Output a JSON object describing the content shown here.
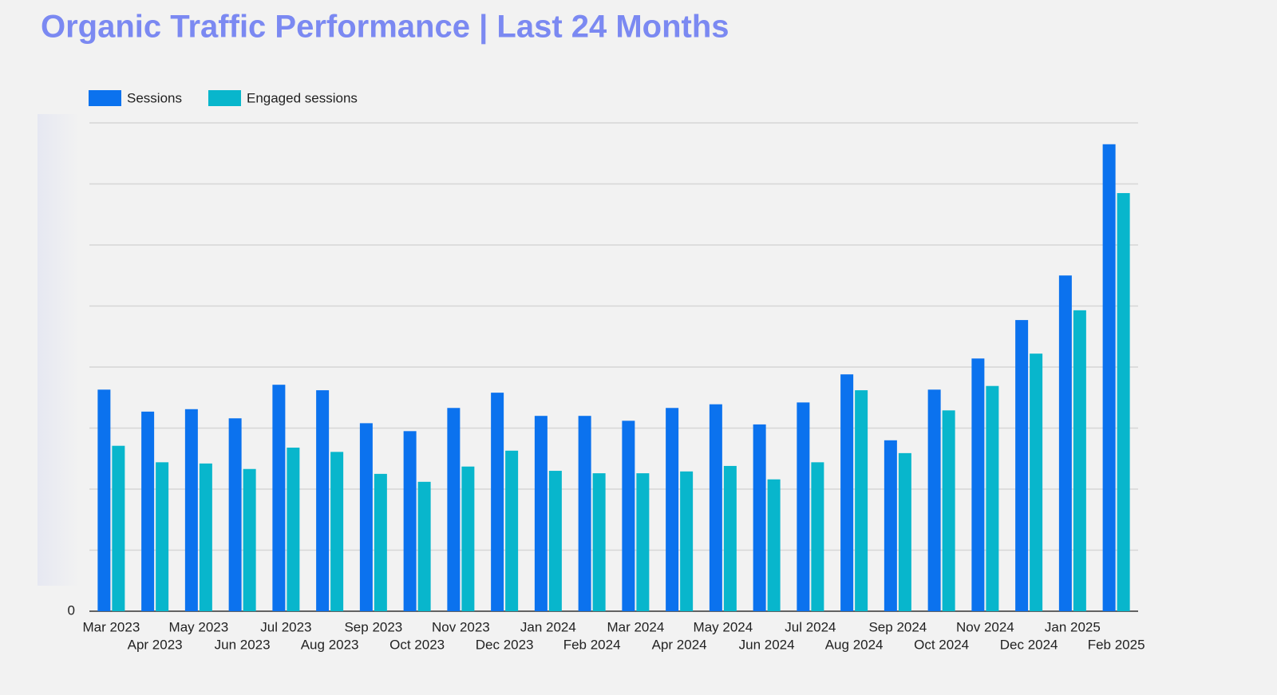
{
  "chart_data": {
    "type": "bar",
    "title": "Organic Traffic Performance | Last 24 Months",
    "categories": [
      "Mar 2023",
      "Apr 2023",
      "May 2023",
      "Jun 2023",
      "Jul 2023",
      "Aug 2023",
      "Sep 2023",
      "Oct 2023",
      "Nov 2023",
      "Dec 2023",
      "Jan 2024",
      "Feb 2024",
      "Mar 2024",
      "Apr 2024",
      "May 2024",
      "Jun 2024",
      "Jul 2024",
      "Aug 2024",
      "Sep 2024",
      "Oct 2024",
      "Nov 2024",
      "Dec 2024",
      "Jan 2025",
      "Feb 2025"
    ],
    "series": [
      {
        "name": "Sessions",
        "color": "#0b72ee",
        "values": [
          3.63,
          3.27,
          3.31,
          3.16,
          3.71,
          3.62,
          3.08,
          2.95,
          3.33,
          3.58,
          3.2,
          3.2,
          3.12,
          3.33,
          3.39,
          3.06,
          3.42,
          3.88,
          2.8,
          3.63,
          4.14,
          4.77,
          5.5,
          7.65
        ]
      },
      {
        "name": "Engaged sessions",
        "color": "#08b6cc",
        "values": [
          2.71,
          2.44,
          2.42,
          2.33,
          2.68,
          2.61,
          2.25,
          2.12,
          2.37,
          2.63,
          2.3,
          2.26,
          2.26,
          2.29,
          2.38,
          2.16,
          2.44,
          3.62,
          2.59,
          3.29,
          3.69,
          4.22,
          4.93,
          6.85
        ]
      }
    ],
    "ylim": [
      0,
      8
    ],
    "yticks": [
      0
    ],
    "grid_values": [
      1,
      2,
      3,
      4,
      5,
      6,
      7,
      8
    ],
    "grid": true,
    "legend": "top-left"
  }
}
